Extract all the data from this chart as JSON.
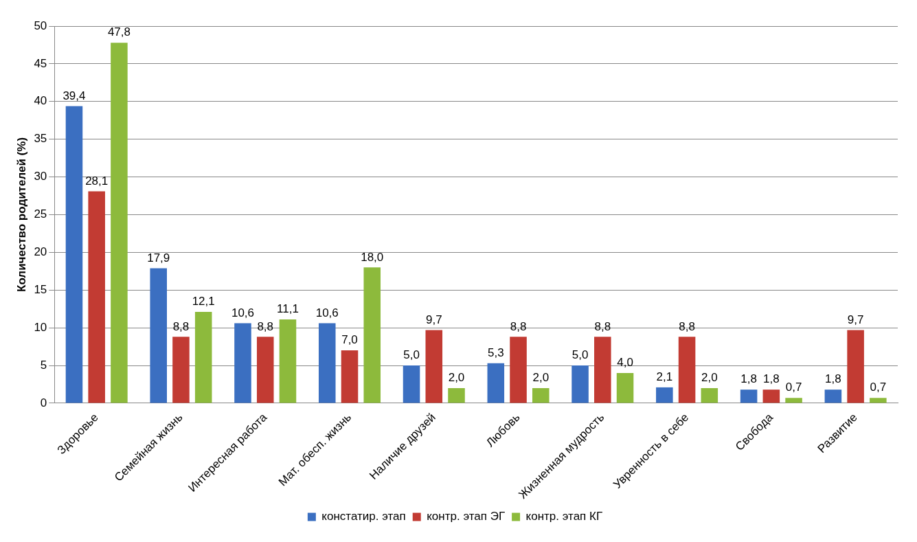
{
  "chart_data": {
    "type": "bar",
    "ylabel": "Количество родителей (%)",
    "categories": [
      "Здоровье",
      "Семейная жизнь",
      "Интересная работа",
      "Мат. обесп. жизнь",
      "Наличие друзей",
      "Любовь",
      "Жизненная мудрость",
      "Увренность в себе",
      "Свобода",
      "Развитие"
    ],
    "series": [
      {
        "name": "констатир. этап",
        "color": "#3b6fc1",
        "values": [
          39.4,
          17.9,
          10.6,
          10.6,
          5.0,
          5.3,
          5.0,
          2.1,
          1.8,
          1.8
        ],
        "value_labels": [
          "39,4",
          "17,9",
          "10,6",
          "10,6",
          "5,0",
          "5,3",
          "5,0",
          "2,1",
          "1,8",
          "1,8"
        ]
      },
      {
        "name": "контр. этап ЭГ",
        "color": "#c23b33",
        "values": [
          28.1,
          8.8,
          8.8,
          7.0,
          9.7,
          8.8,
          8.8,
          8.8,
          1.8,
          9.7
        ],
        "value_labels": [
          "28,1",
          "8,8",
          "8,8",
          "7,0",
          "9,7",
          "8,8",
          "8,8",
          "8,8",
          "1,8",
          "9,7"
        ]
      },
      {
        "name": "контр. этап КГ",
        "color": "#8dba3c",
        "values": [
          47.8,
          12.1,
          11.1,
          18.0,
          2.0,
          2.0,
          4.0,
          2.0,
          0.7,
          0.7
        ],
        "value_labels": [
          "47,8",
          "12,1",
          "11,1",
          "18,0",
          "2,0",
          "2,0",
          "4,0",
          "2,0",
          "0,7",
          "0,7"
        ]
      }
    ],
    "ylim": [
      0,
      50
    ],
    "yticks": [
      0,
      5,
      10,
      15,
      20,
      25,
      30,
      35,
      40,
      45,
      50
    ],
    "grid": "y",
    "legend": "bottom"
  }
}
